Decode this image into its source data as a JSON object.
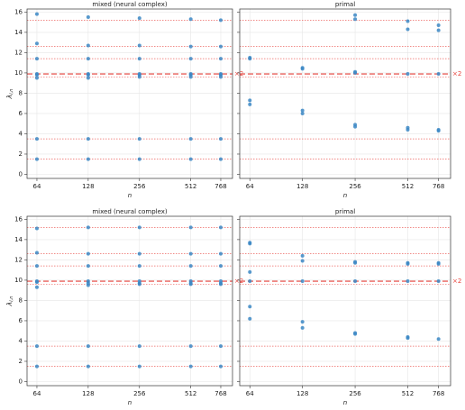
{
  "chart_data": [
    {
      "type": "scatter",
      "title": "mixed (neural complex)",
      "xlabel": "n",
      "ylabel": "λ",
      "ylabel_sub": "i,n",
      "xscale": "log",
      "xlim": [
        56,
        900
      ],
      "xticks": [
        64,
        128,
        256,
        512,
        768
      ],
      "ylim": [
        -0.4,
        16.3
      ],
      "yticks": [
        0,
        2,
        4,
        6,
        8,
        10,
        12,
        14,
        16
      ],
      "yticklabels": true,
      "grid": true,
      "color": "#3b87c4",
      "ref_color": "#e8413b",
      "ref_lines": [
        1.5,
        3.5,
        9.6,
        11.4,
        12.6,
        15.2
      ],
      "double_line": {
        "value": 9.9,
        "label": "×2"
      },
      "points": [
        [
          64,
          15.8
        ],
        [
          64,
          12.9
        ],
        [
          64,
          11.4
        ],
        [
          64,
          9.9
        ],
        [
          64,
          9.8
        ],
        [
          64,
          9.5
        ],
        [
          64,
          3.5
        ],
        [
          64,
          1.5
        ],
        [
          128,
          15.5
        ],
        [
          128,
          12.7
        ],
        [
          128,
          11.4
        ],
        [
          128,
          9.9
        ],
        [
          128,
          9.8
        ],
        [
          128,
          9.5
        ],
        [
          128,
          3.5
        ],
        [
          128,
          1.5
        ],
        [
          256,
          15.4
        ],
        [
          256,
          12.7
        ],
        [
          256,
          11.4
        ],
        [
          256,
          9.9
        ],
        [
          256,
          9.8
        ],
        [
          256,
          9.6
        ],
        [
          256,
          3.5
        ],
        [
          256,
          1.5
        ],
        [
          512,
          15.3
        ],
        [
          512,
          12.6
        ],
        [
          512,
          11.4
        ],
        [
          512,
          9.9
        ],
        [
          512,
          9.8
        ],
        [
          512,
          9.6
        ],
        [
          512,
          3.5
        ],
        [
          512,
          1.5
        ],
        [
          768,
          15.2
        ],
        [
          768,
          12.6
        ],
        [
          768,
          11.4
        ],
        [
          768,
          9.9
        ],
        [
          768,
          9.8
        ],
        [
          768,
          9.6
        ],
        [
          768,
          3.5
        ],
        [
          768,
          1.5
        ]
      ]
    },
    {
      "type": "scatter",
      "title": "primal",
      "xlabel": "n",
      "xscale": "log",
      "xlim": [
        56,
        900
      ],
      "xticks": [
        64,
        128,
        256,
        512,
        768
      ],
      "ylim": [
        -0.4,
        16.3
      ],
      "yticks": [
        0,
        2,
        4,
        6,
        8,
        10,
        12,
        14,
        16
      ],
      "yticklabels": false,
      "grid": true,
      "color": "#3b87c4",
      "ref_color": "#e8413b",
      "ref_lines": [
        1.5,
        3.5,
        9.6,
        11.4,
        12.6,
        15.2
      ],
      "double_line": {
        "value": 9.9,
        "label": "×2"
      },
      "points": [
        [
          64,
          11.5
        ],
        [
          64,
          11.4
        ],
        [
          64,
          7.3
        ],
        [
          64,
          6.9
        ],
        [
          128,
          10.5
        ],
        [
          128,
          10.4
        ],
        [
          128,
          6.3
        ],
        [
          128,
          6.0
        ],
        [
          256,
          15.7
        ],
        [
          256,
          15.3
        ],
        [
          256,
          10.1
        ],
        [
          256,
          10.0
        ],
        [
          256,
          4.9
        ],
        [
          256,
          4.7
        ],
        [
          512,
          15.1
        ],
        [
          512,
          14.3
        ],
        [
          512,
          9.9
        ],
        [
          512,
          4.6
        ],
        [
          512,
          4.4
        ],
        [
          768,
          14.7
        ],
        [
          768,
          14.2
        ],
        [
          768,
          9.9
        ],
        [
          768,
          4.4
        ],
        [
          768,
          4.3
        ]
      ]
    },
    {
      "type": "scatter",
      "title": "mixed (neural complex)",
      "xlabel": "n",
      "ylabel": "λ",
      "ylabel_sub": "i,n",
      "xscale": "log",
      "xlim": [
        56,
        900
      ],
      "xticks": [
        64,
        128,
        256,
        512,
        768
      ],
      "ylim": [
        -0.4,
        16.3
      ],
      "yticks": [
        0,
        2,
        4,
        6,
        8,
        10,
        12,
        14,
        16
      ],
      "yticklabels": true,
      "grid": true,
      "color": "#3b87c4",
      "ref_color": "#e8413b",
      "ref_lines": [
        1.5,
        3.5,
        9.6,
        11.4,
        12.6,
        15.2
      ],
      "double_line": {
        "value": 9.9,
        "label": "×2"
      },
      "points": [
        [
          64,
          15.1
        ],
        [
          64,
          12.7
        ],
        [
          64,
          11.4
        ],
        [
          64,
          9.9
        ],
        [
          64,
          9.8
        ],
        [
          64,
          9.3
        ],
        [
          64,
          3.5
        ],
        [
          64,
          1.5
        ],
        [
          128,
          15.2
        ],
        [
          128,
          12.6
        ],
        [
          128,
          11.4
        ],
        [
          128,
          9.9
        ],
        [
          128,
          9.7
        ],
        [
          128,
          9.5
        ],
        [
          128,
          3.5
        ],
        [
          128,
          1.5
        ],
        [
          256,
          15.2
        ],
        [
          256,
          12.6
        ],
        [
          256,
          11.4
        ],
        [
          256,
          9.9
        ],
        [
          256,
          9.7
        ],
        [
          256,
          9.6
        ],
        [
          256,
          3.5
        ],
        [
          256,
          1.5
        ],
        [
          512,
          15.2
        ],
        [
          512,
          12.6
        ],
        [
          512,
          11.4
        ],
        [
          512,
          9.9
        ],
        [
          512,
          9.7
        ],
        [
          512,
          9.6
        ],
        [
          512,
          3.5
        ],
        [
          512,
          1.5
        ],
        [
          768,
          15.2
        ],
        [
          768,
          12.6
        ],
        [
          768,
          11.4
        ],
        [
          768,
          9.9
        ],
        [
          768,
          9.7
        ],
        [
          768,
          9.6
        ],
        [
          768,
          3.5
        ],
        [
          768,
          1.5
        ]
      ]
    },
    {
      "type": "scatter",
      "title": "primal",
      "xlabel": "n",
      "xscale": "log",
      "xlim": [
        56,
        900
      ],
      "xticks": [
        64,
        128,
        256,
        512,
        768
      ],
      "ylim": [
        -0.4,
        16.3
      ],
      "yticks": [
        0,
        2,
        4,
        6,
        8,
        10,
        12,
        14,
        16
      ],
      "yticklabels": false,
      "grid": true,
      "color": "#3b87c4",
      "ref_color": "#e8413b",
      "ref_lines": [
        1.5,
        3.5,
        9.6,
        11.4,
        12.6,
        15.2
      ],
      "double_line": {
        "value": 9.9,
        "label": "×2"
      },
      "points": [
        [
          64,
          13.7
        ],
        [
          64,
          13.6
        ],
        [
          64,
          10.8
        ],
        [
          64,
          9.9
        ],
        [
          64,
          7.4
        ],
        [
          64,
          6.2
        ],
        [
          128,
          12.4
        ],
        [
          128,
          11.9
        ],
        [
          128,
          9.9
        ],
        [
          128,
          5.9
        ],
        [
          128,
          5.3
        ],
        [
          256,
          11.8
        ],
        [
          256,
          11.7
        ],
        [
          256,
          9.9
        ],
        [
          256,
          4.8
        ],
        [
          256,
          4.7
        ],
        [
          512,
          11.7
        ],
        [
          512,
          11.6
        ],
        [
          512,
          9.9
        ],
        [
          512,
          4.4
        ],
        [
          512,
          4.3
        ],
        [
          768,
          11.7
        ],
        [
          768,
          11.6
        ],
        [
          768,
          9.9
        ],
        [
          768,
          4.2
        ]
      ]
    }
  ]
}
